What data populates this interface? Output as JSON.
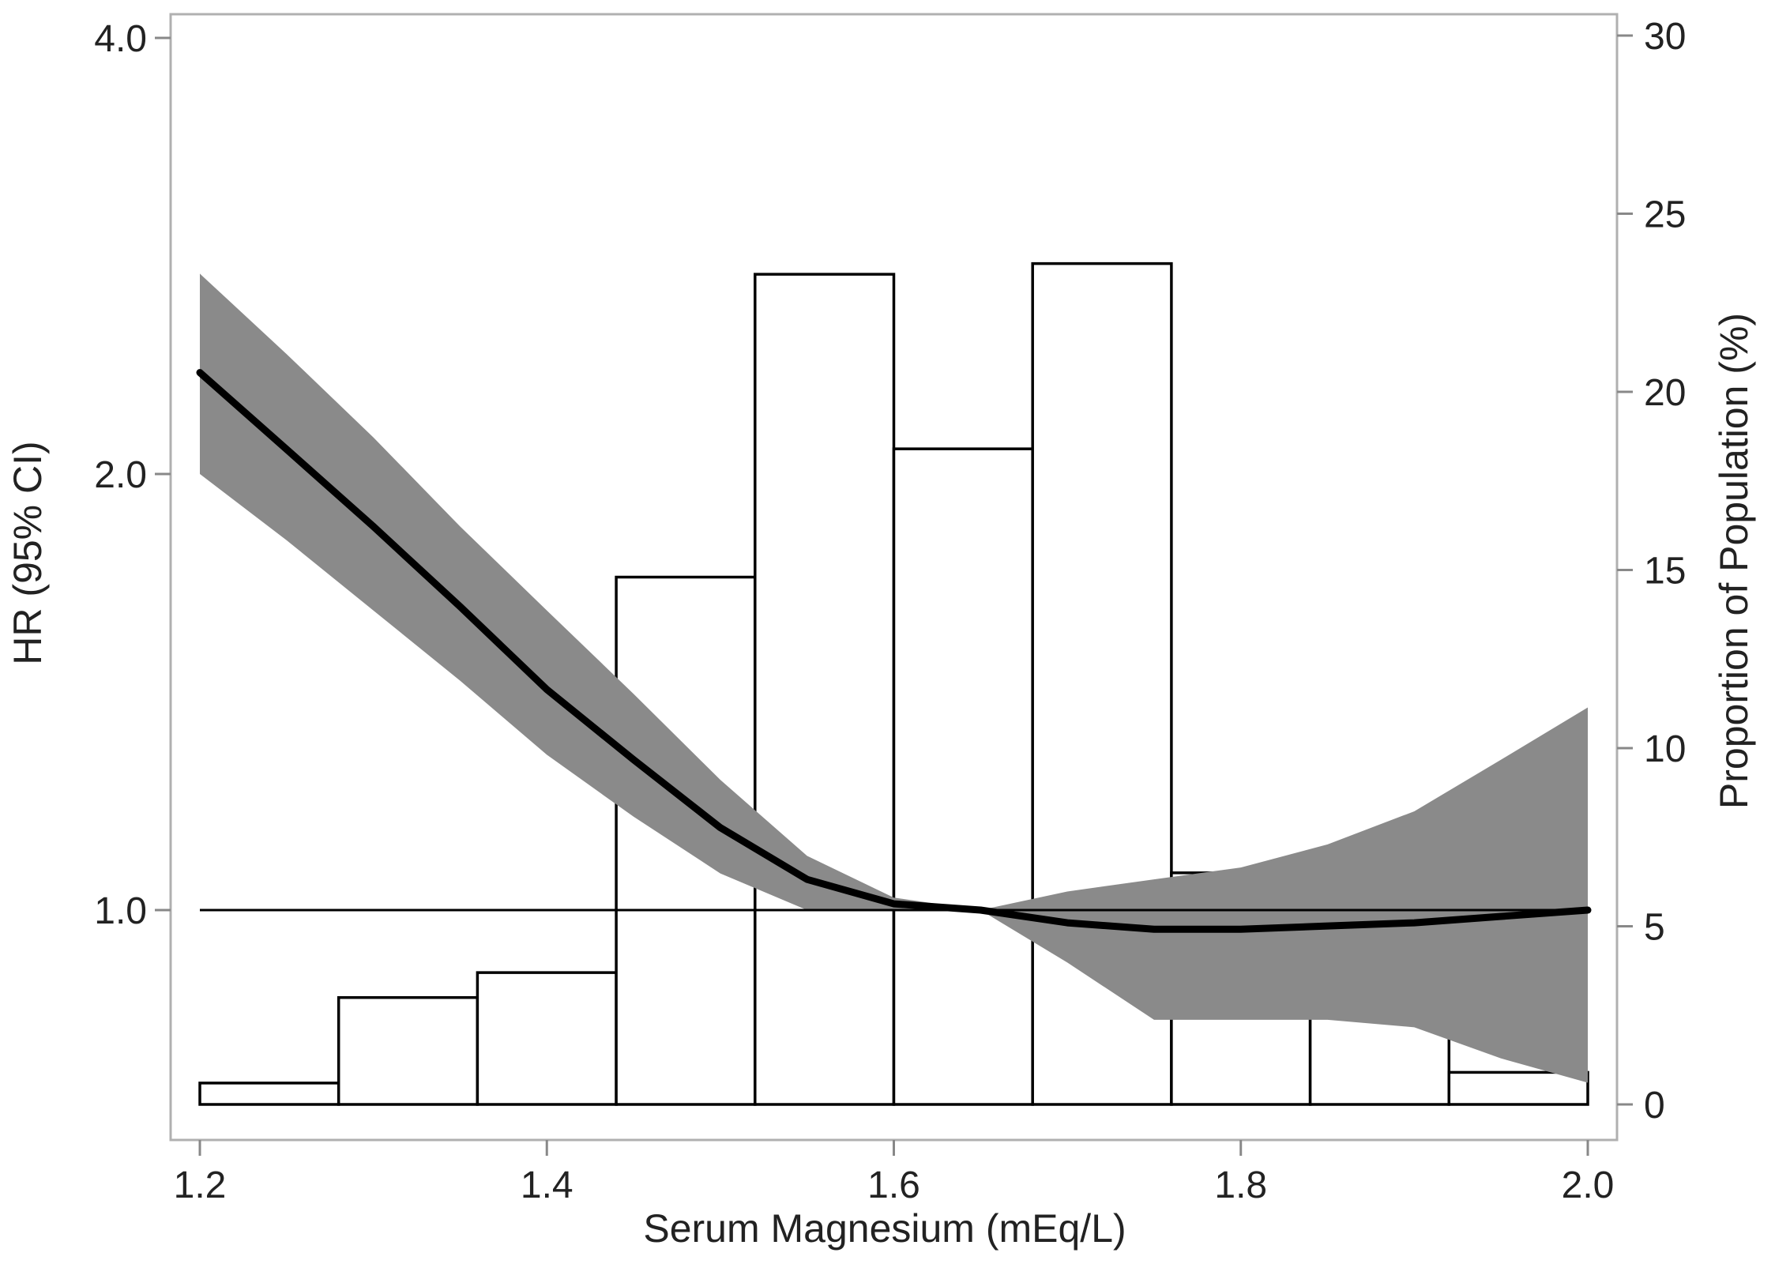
{
  "chart_data": {
    "type": "bar",
    "xlabel": "Serum Magnesium (mEq/L)",
    "ylabel_left": "HR (95% CI)",
    "ylabel_right": "Proportion of Population (%)",
    "x_ticks": [
      "1.2",
      "1.4",
      "1.6",
      "1.8",
      "2.0"
    ],
    "x_tick_values": [
      1.2,
      1.4,
      1.6,
      1.8,
      2.0
    ],
    "xlim": [
      1.2,
      2.0
    ],
    "y_left_scale": "log",
    "y_left_ticks": [
      "1.0",
      "2.0",
      "4.0"
    ],
    "y_left_tick_values": [
      1.0,
      2.0,
      4.0
    ],
    "y_left_lim": [
      0.6,
      4.0
    ],
    "y_right_ticks": [
      "0",
      "5",
      "10",
      "15",
      "20",
      "25",
      "30"
    ],
    "y_right_tick_values": [
      0,
      5,
      10,
      15,
      20,
      25,
      30
    ],
    "y_right_lim": [
      0,
      30
    ],
    "histogram": {
      "bin_edges": [
        1.2,
        1.28,
        1.36,
        1.44,
        1.52,
        1.6,
        1.68,
        1.76,
        1.84,
        1.92,
        2.0
      ],
      "values": [
        0.6,
        3.0,
        3.7,
        14.8,
        23.3,
        18.4,
        23.6,
        6.5,
        5.0,
        0.9
      ]
    },
    "reference_line": 1.0,
    "hr_curve": {
      "x": [
        1.2,
        1.25,
        1.3,
        1.35,
        1.4,
        1.45,
        1.5,
        1.55,
        1.6,
        1.65,
        1.7,
        1.75,
        1.8,
        1.85,
        1.9,
        1.95,
        2.0
      ],
      "hr": [
        2.35,
        2.08,
        1.84,
        1.62,
        1.42,
        1.27,
        1.14,
        1.05,
        1.01,
        1.0,
        0.98,
        0.97,
        0.97,
        0.975,
        0.98,
        0.99,
        1.0
      ]
    },
    "hr_ci": {
      "x": [
        1.2,
        1.25,
        1.3,
        1.35,
        1.4,
        1.45,
        1.5,
        1.55,
        1.6,
        1.65,
        1.7,
        1.75,
        1.8,
        1.85,
        1.9,
        1.95,
        2.0
      ],
      "lower": [
        2.0,
        1.8,
        1.61,
        1.44,
        1.28,
        1.16,
        1.06,
        1.0,
        1.0,
        1.0,
        0.92,
        0.84,
        0.84,
        0.84,
        0.83,
        0.79,
        0.76
      ],
      "upper": [
        2.75,
        2.42,
        2.12,
        1.84,
        1.61,
        1.41,
        1.23,
        1.09,
        1.02,
        1.0,
        1.03,
        1.05,
        1.07,
        1.11,
        1.17,
        1.27,
        1.38
      ]
    },
    "colors": {
      "ci_band": "#8a8a8a",
      "curve": "#000000",
      "bars_fill": "#ffffff",
      "bars_stroke": "#000000",
      "frame": "#b0b0b0"
    },
    "grid": false,
    "legend": "none"
  }
}
